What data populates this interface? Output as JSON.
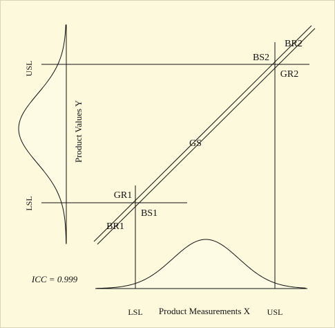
{
  "axes": {
    "x_label": "Product Measurements X",
    "y_label": "Product Values Y",
    "x_lsl": "LSL",
    "x_usl": "USL",
    "y_lsl": "LSL",
    "y_usl": "USL"
  },
  "regions": {
    "gs": "GS",
    "gr1": "GR1",
    "gr2": "GR2",
    "bs1": "BS1",
    "bs2": "BS2",
    "br1": "BR1",
    "br2": "BR2"
  },
  "icc": "ICC = 0.999",
  "colors": {
    "background": "#fdf9dd",
    "curve_fill": "#fdfbe3",
    "line": "#111111",
    "border": "#d8d4b8"
  }
}
